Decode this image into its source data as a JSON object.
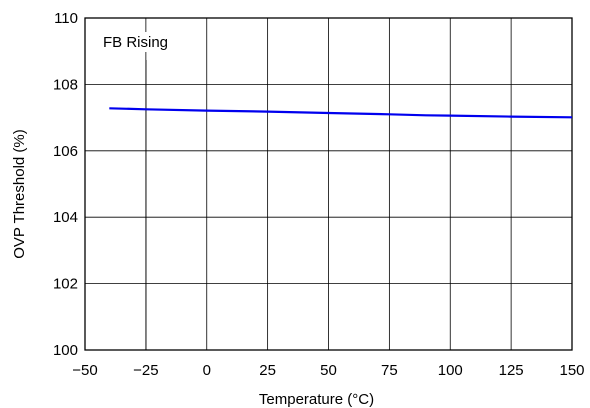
{
  "chart_data": {
    "type": "line",
    "title": "",
    "xlabel": "Temperature (°C)",
    "ylabel": "OVP Threshold (%)",
    "xlim": [
      -50,
      150
    ],
    "ylim": [
      100,
      110
    ],
    "xticks": [
      -50,
      -25,
      0,
      25,
      50,
      75,
      100,
      125,
      150
    ],
    "xtick_labels": [
      "−50",
      "−25",
      "0",
      "25",
      "50",
      "75",
      "100",
      "125",
      "150"
    ],
    "yticks": [
      100,
      102,
      104,
      106,
      108,
      110
    ],
    "ytick_labels": [
      "100",
      "102",
      "104",
      "106",
      "108",
      "110"
    ],
    "grid": true,
    "annotation": "FB Rising",
    "series": [
      {
        "color": "#0000ee",
        "x": [
          -40,
          -25,
          0,
          25,
          50,
          75,
          90,
          100,
          125,
          150
        ],
        "y": [
          107.28,
          107.25,
          107.21,
          107.18,
          107.14,
          107.1,
          107.07,
          107.06,
          107.03,
          107.01
        ]
      }
    ]
  }
}
